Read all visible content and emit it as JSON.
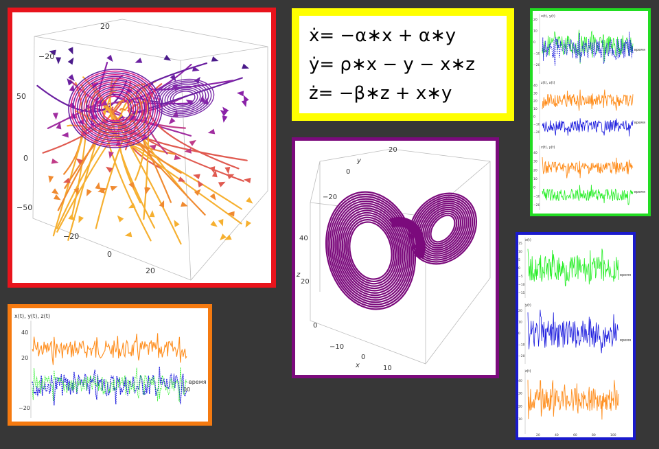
{
  "equations": [
    "ẋ=  −α∗x  +  α∗y",
    "ẏ=  ρ∗x  −  y  −  x∗z",
    "ż=  −β∗z  +  x∗y"
  ],
  "vector_plot": {
    "ticks_top": [
      "20",
      "−20"
    ],
    "ticks_side": [
      "50",
      "0",
      "−50"
    ],
    "ticks_bottom": [
      "−20",
      "0",
      "20"
    ]
  },
  "attractor_plot": {
    "y_axis_label": "y",
    "z_axis_label": "z",
    "x_axis_label": "x",
    "ticks_y": [
      "20",
      "0",
      "−20"
    ],
    "ticks_z": [
      "40",
      "20",
      "0"
    ],
    "ticks_x": [
      "−10",
      "0",
      "10"
    ],
    "color": "#7b0a7c"
  },
  "orange_plot": {
    "ylabel": "x(t), y(t), z(t)",
    "xlabel": "время",
    "ticks_y": [
      "40",
      "20",
      "−20"
    ],
    "tick_x_end": "00"
  },
  "green_panel": {
    "sub1_label": "x(t), y(t)",
    "sub2_label": "z(t), x(t)",
    "sub3_label": "z(t), y(t)",
    "xlabel": "время",
    "sub1_ticks": [
      "20",
      "10",
      "0",
      "−10",
      "−20"
    ],
    "sub2_ticks": [
      "40",
      "30",
      "20",
      "10",
      "0",
      "−10",
      "−20"
    ],
    "sub3_ticks": [
      "40",
      "30",
      "20",
      "10",
      "0",
      "−10",
      "−20"
    ]
  },
  "blue_panel": {
    "sub1_label": "x(t)",
    "sub2_label": "y(t)",
    "sub3_label": "z(t)",
    "xlabel": "время",
    "sub1_ticks": [
      "15",
      "10",
      "5",
      "0",
      "−5",
      "−10",
      "−15"
    ],
    "sub2_ticks": [
      "20",
      "10",
      "0",
      "−10",
      "−20"
    ],
    "sub3_ticks": [
      "40",
      "30",
      "20",
      "10"
    ],
    "x_ticks": [
      "20",
      "40",
      "60",
      "80",
      "100"
    ]
  },
  "colors": {
    "frame_vector": "#e8141c",
    "frame_equations": "#ffff00",
    "frame_attractor": "#7b0a7c",
    "frame_green": "#22dd22",
    "frame_blue": "#1a1acc",
    "frame_orange": "#f57a10",
    "series_x": "#22ee22",
    "series_y": "#1a1add",
    "series_z": "#ff8c1a"
  }
}
